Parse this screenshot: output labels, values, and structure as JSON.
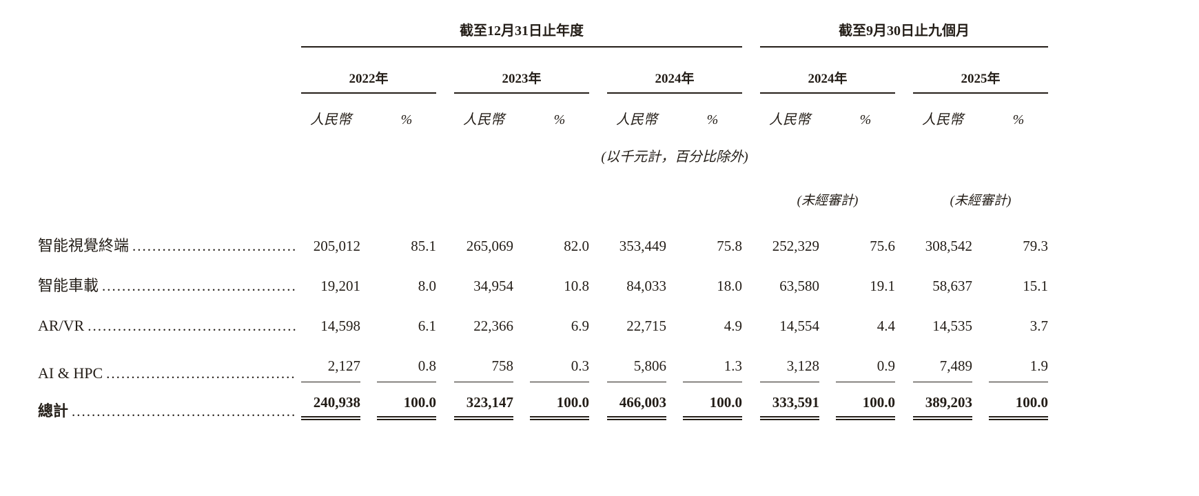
{
  "table": {
    "section_headers": {
      "annual": "截至12月31日止年度",
      "interim": "截至9月30日止九個月"
    },
    "year_headers": [
      "2022年",
      "2023年",
      "2024年",
      "2024年",
      "2025年"
    ],
    "sub_headers": {
      "currency": "人民幣",
      "percent": "%"
    },
    "unit_note": "(以千元計，百分比除外)",
    "unaudited_note": "(未經審計)",
    "rows": [
      {
        "label": "智能視覺終端",
        "values": [
          "205,012",
          "85.1",
          "265,069",
          "82.0",
          "353,449",
          "75.8",
          "252,329",
          "75.6",
          "308,542",
          "79.3"
        ]
      },
      {
        "label": "智能車載",
        "values": [
          "19,201",
          "8.0",
          "34,954",
          "10.8",
          "84,033",
          "18.0",
          "63,580",
          "19.1",
          "58,637",
          "15.1"
        ]
      },
      {
        "label": "AR/VR",
        "values": [
          "14,598",
          "6.1",
          "22,366",
          "6.9",
          "22,715",
          "4.9",
          "14,554",
          "4.4",
          "14,535",
          "3.7"
        ]
      },
      {
        "label": "AI & HPC",
        "values": [
          "2,127",
          "0.8",
          "758",
          "0.3",
          "5,806",
          "1.3",
          "3,128",
          "0.9",
          "7,489",
          "1.9"
        ]
      }
    ],
    "total_row": {
      "label": "總計",
      "values": [
        "240,938",
        "100.0",
        "323,147",
        "100.0",
        "466,003",
        "100.0",
        "333,591",
        "100.0",
        "389,203",
        "100.0"
      ]
    }
  }
}
